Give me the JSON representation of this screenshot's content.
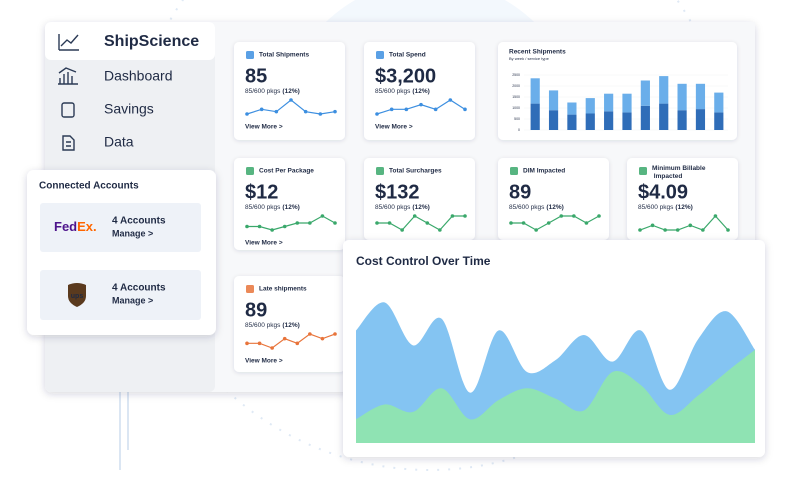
{
  "sidebar": {
    "brand": "ShipScience",
    "items": [
      "Dashboard",
      "Savings",
      "Data"
    ]
  },
  "accounts": {
    "title": "Connected Accounts",
    "carriers": [
      {
        "logo": [
          "Fed",
          "Ex."
        ],
        "count": "4 Accounts",
        "action": "Manage >"
      },
      {
        "logo": [
          "ups"
        ],
        "count": "4 Accounts",
        "action": "Manage >"
      }
    ]
  },
  "cards": [
    {
      "title": "Total Shipments",
      "value": "85",
      "detail": "85/600 pkgs",
      "pct": "(12%)",
      "link": "View More >",
      "color": "#3d8fe0",
      "spark": [
        3,
        5,
        4,
        9,
        4,
        3,
        4
      ]
    },
    {
      "title": "Total Spend",
      "value": "$3,200",
      "detail": "85/600 pkgs",
      "pct": "(12%)",
      "link": "View More >",
      "color": "#3d8fe0",
      "spark": [
        3,
        4,
        4,
        5,
        4,
        6,
        4
      ]
    },
    {
      "title": "Cost Per Package",
      "value": "$12",
      "detail": "85/600 pkgs",
      "pct": "(12%)",
      "link": "View More >",
      "color": "#3aa86b",
      "spark": [
        4,
        4,
        3,
        4,
        5,
        5,
        7,
        5
      ]
    },
    {
      "title": "Total Surcharges",
      "value": "$132",
      "detail": "85/600 pkgs",
      "pct": "(12%)",
      "color": "#3aa86b",
      "spark": [
        5,
        5,
        4,
        6,
        5,
        4,
        6,
        6
      ]
    },
    {
      "title": "DIM Impacted",
      "value": "89",
      "detail": "85/600 pkgs",
      "pct": "(12%)",
      "color": "#3aa86b",
      "spark": [
        5,
        5,
        4,
        5,
        6,
        6,
        5,
        6
      ]
    },
    {
      "title": "Minimum Billable Impacted",
      "value": "$4.09",
      "detail": "85/600 pkgs",
      "pct": "(12%)",
      "color": "#3aa86b",
      "spark": [
        4,
        5,
        4,
        4,
        5,
        4,
        7,
        4
      ]
    },
    {
      "title": "Late shipments",
      "value": "89",
      "detail": "85/600 pkgs",
      "pct": "(12%)",
      "link": "View More >",
      "color": "#e8743b",
      "spark": [
        4,
        4,
        3,
        5,
        4,
        6,
        5,
        6
      ]
    }
  ],
  "recent_shipments": {
    "title": "Recent Shipments",
    "subtitle": "By week / service type",
    "ylim": [
      0,
      2500
    ],
    "yticks": [
      0,
      500,
      1000,
      1500,
      2000,
      2500
    ],
    "segments": [
      {
        "color": "#2f6db8",
        "values": [
          1200,
          900,
          700,
          750,
          850,
          800,
          1100,
          1200,
          900,
          950,
          800
        ]
      },
      {
        "color": "#6aaeea",
        "values": [
          1150,
          900,
          550,
          700,
          800,
          850,
          1150,
          1250,
          1200,
          1150,
          900
        ]
      }
    ]
  },
  "cost_control": {
    "title": "Cost Control Over Time",
    "ylim": [
      0,
      100
    ],
    "series": [
      {
        "color": "#84c4f2",
        "values": [
          76,
          95,
          66,
          84,
          34,
          76,
          48,
          56,
          73,
          55,
          76,
          36,
          70,
          89,
          63
        ]
      },
      {
        "color": "#8fe3b3",
        "values": [
          16,
          26,
          21,
          37,
          16,
          29,
          37,
          30,
          22,
          48,
          39,
          19,
          32,
          48,
          63
        ]
      }
    ]
  }
}
